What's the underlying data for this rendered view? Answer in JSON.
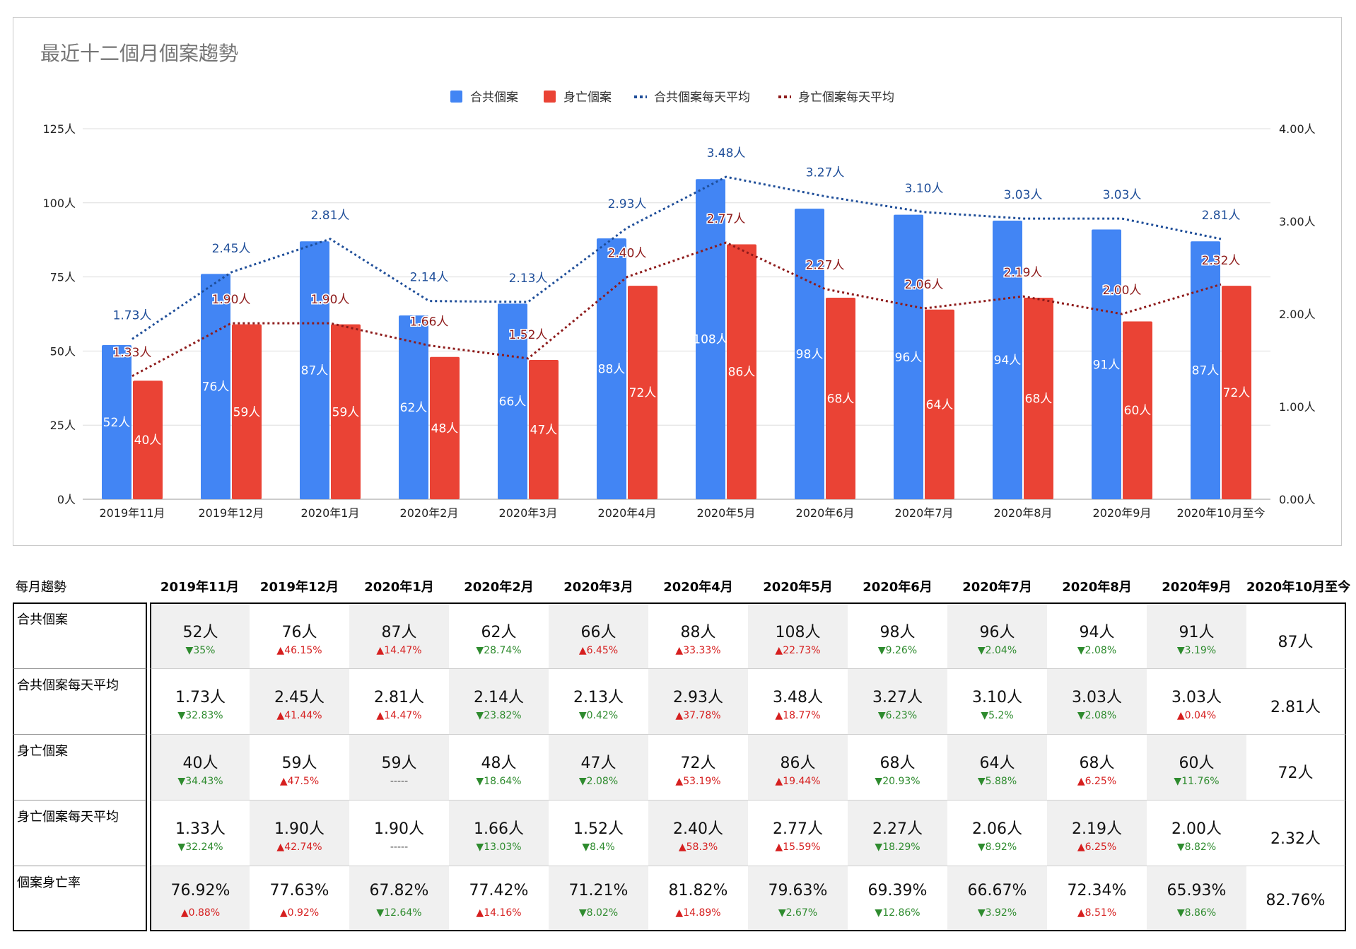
{
  "chart_data": {
    "type": "bar",
    "title": "最近十二個月個案趨勢",
    "categories": [
      "2019年11月",
      "2019年12月",
      "2020年1月",
      "2020年2月",
      "2020年3月",
      "2020年4月",
      "2020年5月",
      "2020年6月",
      "2020年7月",
      "2020年8月",
      "2020年9月",
      "2020年10月至今"
    ],
    "series": [
      {
        "name": "合共個案",
        "type": "bar",
        "axis": "left",
        "color": "#4285f4",
        "values": [
          52,
          76,
          87,
          62,
          66,
          88,
          108,
          98,
          96,
          94,
          91,
          87
        ],
        "labels": [
          "52人",
          "76人",
          "87人",
          "62人",
          "66人",
          "88人",
          "108人",
          "98人",
          "96人",
          "94人",
          "91人",
          "87人"
        ]
      },
      {
        "name": "身亡個案",
        "type": "bar",
        "axis": "left",
        "color": "#ea4335",
        "values": [
          40,
          59,
          59,
          48,
          47,
          72,
          86,
          68,
          64,
          68,
          60,
          72
        ],
        "labels": [
          "40人",
          "59人",
          "59人",
          "48人",
          "47人",
          "72人",
          "86人",
          "68人",
          "64人",
          "68人",
          "60人",
          "72人"
        ]
      },
      {
        "name": "合共個案每天平均",
        "type": "line",
        "axis": "right",
        "color": "#1f4e99",
        "values": [
          1.73,
          2.45,
          2.81,
          2.14,
          2.13,
          2.93,
          3.48,
          3.27,
          3.1,
          3.03,
          3.03,
          2.81
        ],
        "labels": [
          "1.73人",
          "2.45人",
          "2.81人",
          "2.14人",
          "2.13人",
          "2.93人",
          "3.48人",
          "3.27人",
          "3.10人",
          "3.03人",
          "3.03人",
          "2.81人"
        ]
      },
      {
        "name": "身亡個案每天平均",
        "type": "line",
        "axis": "right",
        "color": "#8e1b1b",
        "values": [
          1.33,
          1.9,
          1.9,
          1.66,
          1.52,
          2.4,
          2.77,
          2.27,
          2.06,
          2.19,
          2.0,
          2.32
        ],
        "labels": [
          "1.33人",
          "1.90人",
          "1.90人",
          "1.66人",
          "1.52人",
          "2.40人",
          "2.77人",
          "2.27人",
          "2.06人",
          "2.19人",
          "2.00人",
          "2.32人"
        ]
      }
    ],
    "ylim_left": [
      0,
      125
    ],
    "yticks_left": [
      "0人",
      "25人",
      "50人",
      "75人",
      "100人",
      "125人"
    ],
    "ylim_right": [
      0,
      4
    ],
    "yticks_right": [
      "0.00人",
      "1.00人",
      "2.00人",
      "3.00人",
      "4.00人"
    ],
    "grid": true,
    "legend": "top-center"
  },
  "table": {
    "corner": "每月趨勢",
    "months": [
      "2019年11月",
      "2019年12月",
      "2020年1月",
      "2020年2月",
      "2020年3月",
      "2020年4月",
      "2020年5月",
      "2020年6月",
      "2020年7月",
      "2020年8月",
      "2020年9月",
      "2020年10月至今"
    ],
    "rows": [
      {
        "label": "合共個案",
        "values": [
          "52人",
          "76人",
          "87人",
          "62人",
          "66人",
          "88人",
          "108人",
          "98人",
          "96人",
          "94人",
          "91人",
          "87人"
        ],
        "changes": [
          "▼35%",
          "▲46.15%",
          "▲14.47%",
          "▼28.74%",
          "▲6.45%",
          "▲33.33%",
          "▲22.73%",
          "▼9.26%",
          "▼2.04%",
          "▼2.08%",
          "▼3.19%",
          ""
        ],
        "dirs": [
          "down",
          "up",
          "up",
          "down",
          "up",
          "up",
          "up",
          "down",
          "down",
          "down",
          "down",
          ""
        ]
      },
      {
        "label": "合共個案每天平均",
        "values": [
          "1.73人",
          "2.45人",
          "2.81人",
          "2.14人",
          "2.13人",
          "2.93人",
          "3.48人",
          "3.27人",
          "3.10人",
          "3.03人",
          "3.03人",
          "2.81人"
        ],
        "changes": [
          "▼32.83%",
          "▲41.44%",
          "▲14.47%",
          "▼23.82%",
          "▼0.42%",
          "▲37.78%",
          "▲18.77%",
          "▼6.23%",
          "▼5.2%",
          "▼2.08%",
          "▲0.04%",
          ""
        ],
        "dirs": [
          "down",
          "up",
          "up",
          "down",
          "down",
          "up",
          "up",
          "down",
          "down",
          "down",
          "up",
          ""
        ]
      },
      {
        "label": "身亡個案",
        "values": [
          "40人",
          "59人",
          "59人",
          "48人",
          "47人",
          "72人",
          "86人",
          "68人",
          "64人",
          "68人",
          "60人",
          "72人"
        ],
        "changes": [
          "▼34.43%",
          "▲47.5%",
          "-----",
          "▼18.64%",
          "▼2.08%",
          "▲53.19%",
          "▲19.44%",
          "▼20.93%",
          "▼5.88%",
          "▲6.25%",
          "▼11.76%",
          ""
        ],
        "dirs": [
          "down",
          "up",
          "flat",
          "down",
          "down",
          "up",
          "up",
          "down",
          "down",
          "up",
          "down",
          ""
        ]
      },
      {
        "label": "身亡個案每天平均",
        "values": [
          "1.33人",
          "1.90人",
          "1.90人",
          "1.66人",
          "1.52人",
          "2.40人",
          "2.77人",
          "2.27人",
          "2.06人",
          "2.19人",
          "2.00人",
          "2.32人"
        ],
        "changes": [
          "▼32.24%",
          "▲42.74%",
          "-----",
          "▼13.03%",
          "▼8.4%",
          "▲58.3%",
          "▲15.59%",
          "▼18.29%",
          "▼8.92%",
          "▲6.25%",
          "▼8.82%",
          ""
        ],
        "dirs": [
          "down",
          "up",
          "flat",
          "down",
          "down",
          "up",
          "up",
          "down",
          "down",
          "up",
          "down",
          ""
        ]
      },
      {
        "label": "個案身亡率",
        "values": [
          "76.92%",
          "77.63%",
          "67.82%",
          "77.42%",
          "71.21%",
          "81.82%",
          "79.63%",
          "69.39%",
          "66.67%",
          "72.34%",
          "65.93%",
          "82.76%"
        ],
        "changes": [
          "▲0.88%",
          "▲0.92%",
          "▼12.64%",
          "▲14.16%",
          "▼8.02%",
          "▲14.89%",
          "▼2.67%",
          "▼12.86%",
          "▼3.92%",
          "▲8.51%",
          "▼8.86%",
          ""
        ],
        "dirs": [
          "up",
          "up",
          "down",
          "up",
          "down",
          "up",
          "down",
          "down",
          "down",
          "up",
          "down",
          ""
        ]
      }
    ]
  }
}
